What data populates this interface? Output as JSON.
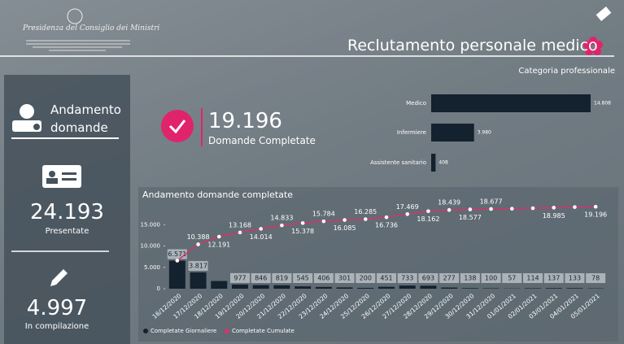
{
  "header": {
    "org": "Presidenza del Consiglio dei Ministri",
    "title": "Reclutamento personale medico"
  },
  "left_panel": {
    "heading": "Andamento domande",
    "stats": [
      {
        "value": "24.193",
        "label": "Presentate"
      },
      {
        "value": "4.997",
        "label": "In compilazione"
      }
    ]
  },
  "kpi": {
    "value": "19.196",
    "label": "Domande Completate"
  },
  "chart_data": [
    {
      "type": "hbar",
      "title": "Categoria professionale",
      "categories": [
        "Medico",
        "Infermiere",
        "Assistente sanitario"
      ],
      "values": [
        14808,
        3980,
        408
      ],
      "value_labels": [
        "14.808",
        "3.980",
        "408"
      ],
      "color": "#14212e"
    },
    {
      "type": "combo",
      "title": "Andamento domande completate",
      "categories": [
        "16/12/2020",
        "17/12/2020",
        "18/12/2020",
        "19/12/2020",
        "20/12/2020",
        "21/12/2020",
        "22/12/2020",
        "23/12/2020",
        "24/12/2020",
        "25/12/2020",
        "26/12/2020",
        "27/12/2020",
        "28/12/2020",
        "29/12/2020",
        "30/12/2020",
        "31/12/2020",
        "01/01/2021",
        "02/01/2021",
        "03/01/2021",
        "04/01/2021",
        "05/01/2021"
      ],
      "series": [
        {
          "name": "Completate Giornaliere",
          "type": "bar",
          "color": "#14212e",
          "values": [
            6571,
            3817,
            1803,
            977,
            846,
            819,
            545,
            406,
            301,
            200,
            451,
            733,
            693,
            277,
            138,
            100,
            57,
            114,
            137,
            133,
            78
          ],
          "value_labels": [
            "6.571",
            "3.817",
            null,
            "977",
            "846",
            "819",
            "545",
            "406",
            "301",
            "200",
            "451",
            "733",
            "693",
            "277",
            "138",
            "100",
            "57",
            "114",
            "137",
            "133",
            "78"
          ]
        },
        {
          "name": "Completate Cumulate",
          "type": "line",
          "color": "#d6336c",
          "values": [
            6571,
            10388,
            12191,
            13168,
            14014,
            14833,
            15378,
            15784,
            16085,
            16285,
            16736,
            17469,
            18162,
            18439,
            18577,
            18677,
            18734,
            18848,
            18985,
            19118,
            19196
          ],
          "value_labels": [
            null,
            "10.388",
            "12.191",
            "13.168",
            "14.014",
            "14.833",
            "15.378",
            "15.784",
            "16.085",
            "16.285",
            "16.736",
            "17.469",
            "18.162",
            "18.439",
            "18.577",
            "18.677",
            null,
            null,
            "18.985",
            null,
            "19.196"
          ]
        }
      ],
      "ylim": [
        0,
        20000
      ],
      "yticks": [
        0,
        {
          "value": 5000,
          "label": "5.000"
        },
        {
          "value": 10000,
          "label": "10.000"
        },
        {
          "value": 15000,
          "label": "15.000"
        }
      ],
      "grid": false
    }
  ]
}
